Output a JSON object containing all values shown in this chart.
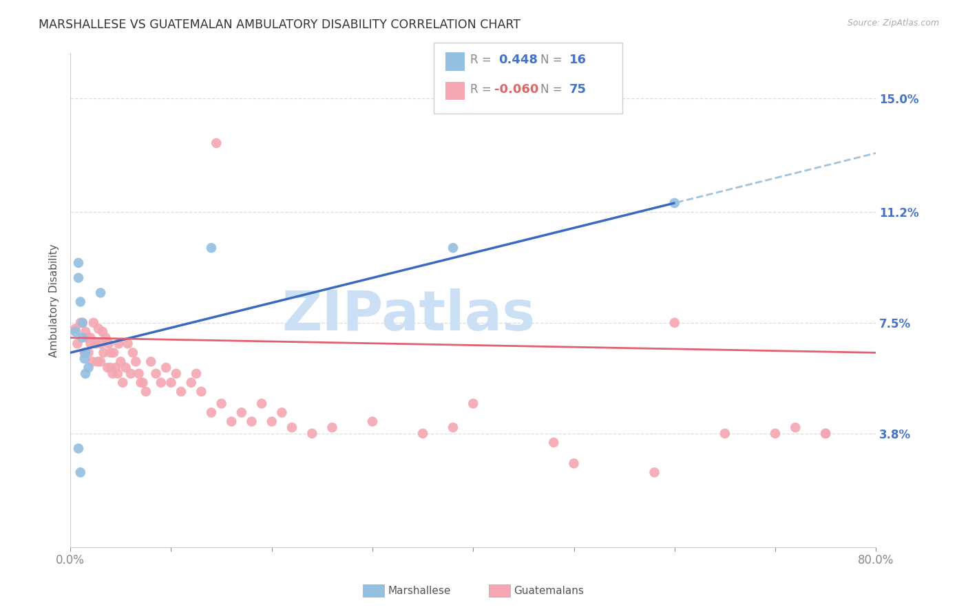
{
  "title": "MARSHALLESE VS GUATEMALAN AMBULATORY DISABILITY CORRELATION CHART",
  "source": "Source: ZipAtlas.com",
  "ylabel": "Ambulatory Disability",
  "xlim": [
    0.0,
    0.8
  ],
  "ylim": [
    0.0,
    0.165
  ],
  "xtick_positions": [
    0.0,
    0.1,
    0.2,
    0.3,
    0.4,
    0.5,
    0.6,
    0.7,
    0.8
  ],
  "xticklabels": [
    "0.0%",
    "",
    "",
    "",
    "",
    "",
    "",
    "",
    "80.0%"
  ],
  "ytick_positions": [
    0.038,
    0.075,
    0.112,
    0.15
  ],
  "ytick_labels": [
    "3.8%",
    "7.5%",
    "11.2%",
    "15.0%"
  ],
  "right_ytick_color": "#4472c4",
  "marshallese_color": "#93bfe0",
  "guatemalan_color": "#f4a7b2",
  "marshallese_line_color": "#3a6abf",
  "guatemalan_line_color": "#e06070",
  "dashed_line_color": "#9fc4e0",
  "background_color": "#ffffff",
  "grid_color": "#dddddd",
  "watermark_text": "ZIPatlas",
  "watermark_color": "#cce0f5",
  "marshallese_x": [
    0.005,
    0.008,
    0.008,
    0.01,
    0.012,
    0.012,
    0.014,
    0.015,
    0.015,
    0.018,
    0.03,
    0.6,
    0.14,
    0.38,
    0.008,
    0.01
  ],
  "marshallese_y": [
    0.072,
    0.09,
    0.095,
    0.082,
    0.075,
    0.07,
    0.063,
    0.065,
    0.058,
    0.06,
    0.085,
    0.115,
    0.1,
    0.1,
    0.033,
    0.025
  ],
  "guatemalan_x": [
    0.005,
    0.007,
    0.01,
    0.012,
    0.014,
    0.015,
    0.017,
    0.018,
    0.02,
    0.02,
    0.022,
    0.023,
    0.025,
    0.027,
    0.028,
    0.03,
    0.03,
    0.032,
    0.033,
    0.035,
    0.037,
    0.038,
    0.04,
    0.04,
    0.042,
    0.043,
    0.045,
    0.047,
    0.048,
    0.05,
    0.052,
    0.055,
    0.057,
    0.06,
    0.062,
    0.065,
    0.068,
    0.07,
    0.072,
    0.075,
    0.08,
    0.085,
    0.09,
    0.095,
    0.1,
    0.105,
    0.11,
    0.12,
    0.125,
    0.13,
    0.14,
    0.15,
    0.16,
    0.17,
    0.18,
    0.19,
    0.2,
    0.21,
    0.22,
    0.24,
    0.26,
    0.3,
    0.35,
    0.38,
    0.4,
    0.48,
    0.5,
    0.58,
    0.6,
    0.65,
    0.7,
    0.72,
    0.75,
    0.75,
    0.145
  ],
  "guatemalan_y": [
    0.073,
    0.068,
    0.075,
    0.075,
    0.065,
    0.072,
    0.07,
    0.065,
    0.07,
    0.068,
    0.062,
    0.075,
    0.068,
    0.062,
    0.073,
    0.068,
    0.062,
    0.072,
    0.065,
    0.07,
    0.06,
    0.068,
    0.065,
    0.06,
    0.058,
    0.065,
    0.06,
    0.058,
    0.068,
    0.062,
    0.055,
    0.06,
    0.068,
    0.058,
    0.065,
    0.062,
    0.058,
    0.055,
    0.055,
    0.052,
    0.062,
    0.058,
    0.055,
    0.06,
    0.055,
    0.058,
    0.052,
    0.055,
    0.058,
    0.052,
    0.045,
    0.048,
    0.042,
    0.045,
    0.042,
    0.048,
    0.042,
    0.045,
    0.04,
    0.038,
    0.04,
    0.042,
    0.038,
    0.04,
    0.048,
    0.035,
    0.028,
    0.025,
    0.075,
    0.038,
    0.038,
    0.04,
    0.038,
    0.038,
    0.135
  ]
}
